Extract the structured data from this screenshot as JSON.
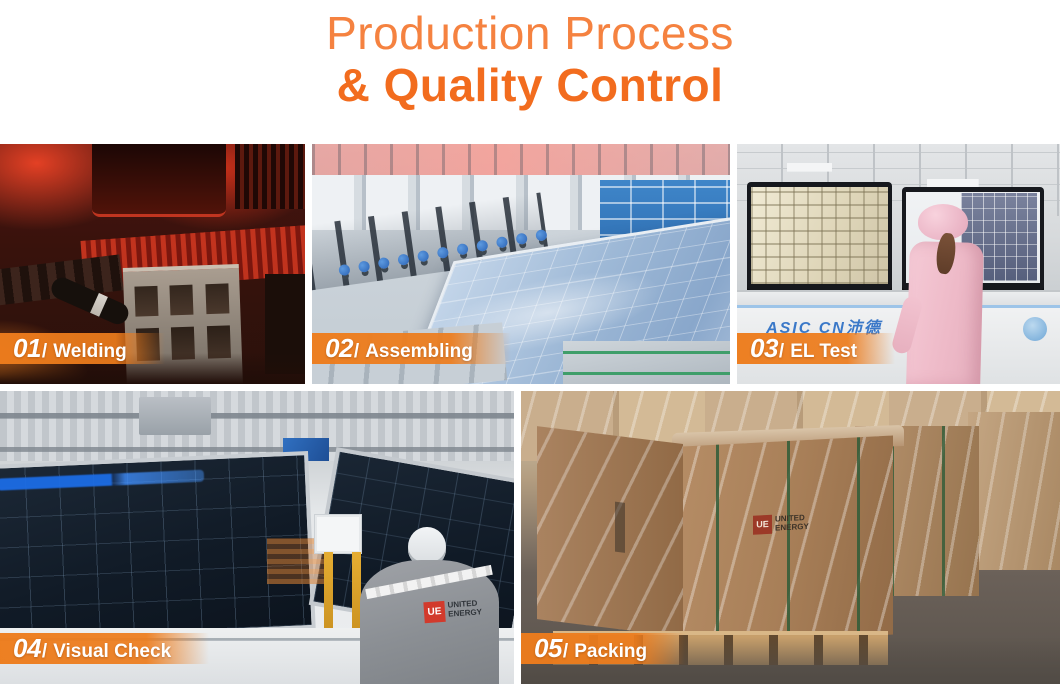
{
  "header": {
    "title_line1": "Production Process",
    "title_line2": "& Quality Control",
    "line1_color": "#f58240",
    "line2_color": "#f26c1e"
  },
  "badge": {
    "separator": "/",
    "background_color": "#ed7c1c",
    "text_color": "#ffffff"
  },
  "steps": [
    {
      "number": "01",
      "label": "Welding"
    },
    {
      "number": "02",
      "label": "Assembling"
    },
    {
      "number": "03",
      "label": "EL Test"
    },
    {
      "number": "04",
      "label": "Visual Check"
    },
    {
      "number": "05",
      "label": "Packing"
    }
  ],
  "photo_texts": {
    "el_test_machine_label": "ASIC CN沛德",
    "jacket_logo": "UE",
    "jacket_brand": "UNITED ENERGY",
    "crate_logo": "UE",
    "crate_brand": "UNITED ENERGY"
  }
}
